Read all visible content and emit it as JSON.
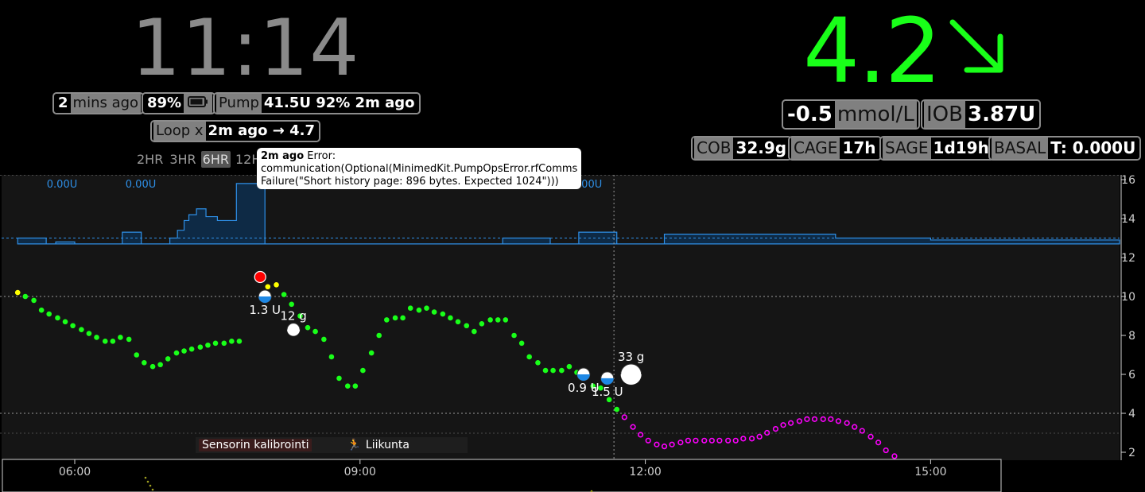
{
  "header": {
    "clock": "11:14",
    "last_reading": {
      "value": "2",
      "label": "mins ago"
    },
    "battery": {
      "value": "89%",
      "icon": "battery-icon"
    },
    "pump": {
      "label": "Pump",
      "value": "41.5U 92% 2m ago"
    },
    "loop": {
      "label": "Loop x",
      "value": "2m ago → 4.7"
    },
    "time_ranges": [
      "2HR",
      "3HR",
      "6HR",
      "12H"
    ],
    "selected_range": "6HR"
  },
  "glucose": {
    "value": "4.2",
    "trend": "↘",
    "trend_icon": "arrow-down-right-icon",
    "color": "#19ff19",
    "delta": "-0.5",
    "units": "mmol/L"
  },
  "pills": {
    "iob": {
      "label": "IOB",
      "value": "3.87U"
    },
    "cob": {
      "label": "COB",
      "value": "32.9g"
    },
    "cage": {
      "label": "CAGE",
      "value": "17h"
    },
    "sage": {
      "label": "SAGE",
      "value": "1d19h"
    },
    "basal": {
      "label": "BASAL",
      "value": "T: 0.000U"
    }
  },
  "tooltip": {
    "bold": "2m ago",
    "text": "Error:",
    "line2": "communication(Optional(MinimedKit.PumpOpsError.rfComms",
    "line3": "Failure(\"Short history page: 896 bytes. Expected 1024\")))"
  },
  "legend": {
    "calibration": "Sensorin kalibrointi",
    "exercise": "Liikunta"
  },
  "colors": {
    "in_range": "#19ff19",
    "high": "#ffff00",
    "very_high": "#ff0000",
    "forecast": "#ff00ff",
    "basal": "#2e8fe6"
  },
  "chart_data": {
    "type": "scatter",
    "x_ticks": [
      "06:00",
      "09:00",
      "12:00",
      "15:00"
    ],
    "y_ticks": [
      "2",
      "4",
      "6",
      "8",
      "10",
      "12",
      "14",
      "16"
    ],
    "ylim": [
      2,
      16
    ],
    "target_lines": [
      4,
      10
    ],
    "basal_labels": [
      "0.00U",
      "0.00U",
      "0.00U"
    ],
    "glucose": [
      [
        5.4,
        10.2
      ],
      [
        5.48,
        10.0
      ],
      [
        5.57,
        9.8
      ],
      [
        5.65,
        9.3
      ],
      [
        5.73,
        9.1
      ],
      [
        5.82,
        8.9
      ],
      [
        5.9,
        8.7
      ],
      [
        5.98,
        8.5
      ],
      [
        6.07,
        8.3
      ],
      [
        6.15,
        8.1
      ],
      [
        6.23,
        7.9
      ],
      [
        6.32,
        7.7
      ],
      [
        6.4,
        7.7
      ],
      [
        6.48,
        7.9
      ],
      [
        6.57,
        7.8
      ],
      [
        6.65,
        7.0
      ],
      [
        6.73,
        6.6
      ],
      [
        6.82,
        6.4
      ],
      [
        6.9,
        6.5
      ],
      [
        6.98,
        6.8
      ],
      [
        7.07,
        7.1
      ],
      [
        7.15,
        7.2
      ],
      [
        7.23,
        7.3
      ],
      [
        7.32,
        7.4
      ],
      [
        7.4,
        7.5
      ],
      [
        7.48,
        7.6
      ],
      [
        7.57,
        7.6
      ],
      [
        7.65,
        7.7
      ],
      [
        7.73,
        7.7
      ],
      [
        7.95,
        11.0
      ],
      [
        8.03,
        10.5
      ],
      [
        8.12,
        10.6
      ],
      [
        8.2,
        10.1
      ],
      [
        8.28,
        9.6
      ],
      [
        8.37,
        9.0
      ],
      [
        8.45,
        8.4
      ],
      [
        8.53,
        8.2
      ],
      [
        8.62,
        7.8
      ],
      [
        8.7,
        6.9
      ],
      [
        8.78,
        5.8
      ],
      [
        8.87,
        5.4
      ],
      [
        8.95,
        5.4
      ],
      [
        9.03,
        6.2
      ],
      [
        9.12,
        7.1
      ],
      [
        9.2,
        8.0
      ],
      [
        9.28,
        8.8
      ],
      [
        9.37,
        8.9
      ],
      [
        9.45,
        8.9
      ],
      [
        9.53,
        9.4
      ],
      [
        9.62,
        9.3
      ],
      [
        9.7,
        9.4
      ],
      [
        9.78,
        9.2
      ],
      [
        9.87,
        9.1
      ],
      [
        9.95,
        8.9
      ],
      [
        10.03,
        8.7
      ],
      [
        10.12,
        8.5
      ],
      [
        10.2,
        8.2
      ],
      [
        10.28,
        8.6
      ],
      [
        10.37,
        8.8
      ],
      [
        10.45,
        8.8
      ],
      [
        10.53,
        8.8
      ],
      [
        10.62,
        8.0
      ],
      [
        10.7,
        7.6
      ],
      [
        10.78,
        6.9
      ],
      [
        10.87,
        6.6
      ],
      [
        10.95,
        6.2
      ],
      [
        11.03,
        6.2
      ],
      [
        11.12,
        6.2
      ],
      [
        11.2,
        6.4
      ],
      [
        11.28,
        6.1
      ],
      [
        11.37,
        5.9
      ],
      [
        11.45,
        5.4
      ],
      [
        11.53,
        5.3
      ],
      [
        11.62,
        4.7
      ],
      [
        11.7,
        4.2
      ]
    ],
    "high_points": [
      [
        5.4,
        10.2
      ],
      [
        8.03,
        10.5
      ],
      [
        8.12,
        10.6
      ]
    ],
    "alert_points": [
      [
        7.95,
        11.0
      ],
      [
        8.3,
        8.3
      ]
    ],
    "forecast": [
      [
        11.78,
        3.8
      ],
      [
        11.87,
        3.3
      ],
      [
        11.95,
        2.9
      ],
      [
        12.03,
        2.6
      ],
      [
        12.12,
        2.4
      ],
      [
        12.2,
        2.3
      ],
      [
        12.28,
        2.4
      ],
      [
        12.37,
        2.5
      ],
      [
        12.45,
        2.6
      ],
      [
        12.53,
        2.6
      ],
      [
        12.62,
        2.6
      ],
      [
        12.7,
        2.6
      ],
      [
        12.78,
        2.6
      ],
      [
        12.87,
        2.6
      ],
      [
        12.95,
        2.6
      ],
      [
        13.03,
        2.7
      ],
      [
        13.12,
        2.7
      ],
      [
        13.2,
        2.8
      ],
      [
        13.28,
        3.0
      ],
      [
        13.37,
        3.2
      ],
      [
        13.45,
        3.4
      ],
      [
        13.53,
        3.5
      ],
      [
        13.62,
        3.6
      ],
      [
        13.7,
        3.7
      ],
      [
        13.78,
        3.7
      ],
      [
        13.87,
        3.7
      ],
      [
        13.95,
        3.7
      ],
      [
        14.03,
        3.6
      ],
      [
        14.12,
        3.5
      ],
      [
        14.2,
        3.3
      ],
      [
        14.28,
        3.1
      ],
      [
        14.37,
        2.8
      ],
      [
        14.45,
        2.5
      ],
      [
        14.53,
        2.1
      ],
      [
        14.62,
        1.8
      ],
      [
        14.7,
        1.4
      ]
    ],
    "treatments": [
      {
        "time": 8.0,
        "bg": 10.0,
        "label": "1.3 U"
      },
      {
        "time": 8.3,
        "bg": 8.3,
        "label": "12 g"
      },
      {
        "time": 11.35,
        "bg": 6.0,
        "label": "0.9 U"
      },
      {
        "time": 11.6,
        "bg": 5.8,
        "label": "1.5 U"
      },
      {
        "time": 11.85,
        "bg": 6.0,
        "label": "33 g"
      }
    ],
    "basal_steps": [
      [
        5.4,
        13.0
      ],
      [
        5.7,
        12.7
      ],
      [
        5.8,
        12.8
      ],
      [
        6.0,
        12.7
      ],
      [
        6.5,
        13.3
      ],
      [
        6.7,
        12.7
      ],
      [
        7.0,
        13.0
      ],
      [
        7.08,
        13.4
      ],
      [
        7.15,
        13.9
      ],
      [
        7.2,
        14.2
      ],
      [
        7.28,
        14.5
      ],
      [
        7.38,
        14.1
      ],
      [
        7.5,
        13.9
      ],
      [
        7.7,
        15.8
      ],
      [
        8.0,
        12.7
      ],
      [
        10.5,
        13.0
      ],
      [
        11.0,
        12.7
      ],
      [
        11.3,
        13.3
      ],
      [
        11.7,
        12.7
      ],
      [
        12.2,
        13.2
      ],
      [
        14.0,
        13.0
      ],
      [
        15.0,
        12.9
      ],
      [
        17.3,
        12.9
      ]
    ]
  }
}
